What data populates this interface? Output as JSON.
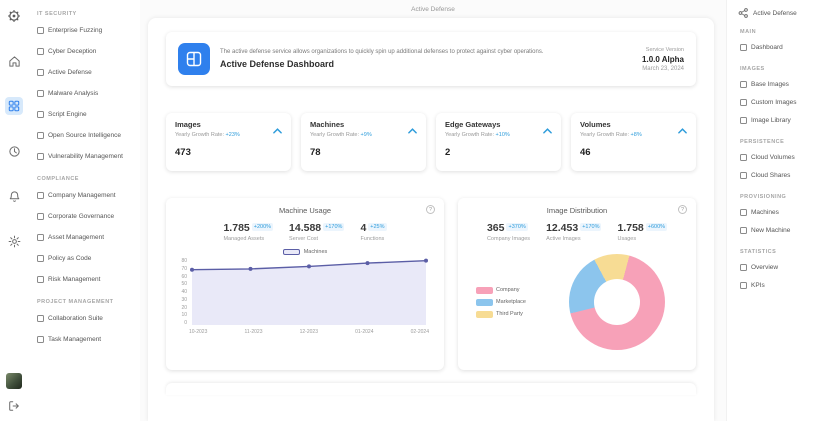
{
  "page_title": "Active Defense",
  "colors": {
    "accent_blue": "#2D9CDB",
    "banner_icon_bg": "#2F80ED",
    "active_rail_bg": "#d7e9fb",
    "line_color": "#5B5EA6",
    "line_fill": "#E9E9F8",
    "donut_pink": "#F7A1B8",
    "donut_blue": "#8CC5ED",
    "donut_yellow": "#F7DC94"
  },
  "icons": {
    "info_glyph": "?"
  },
  "left_rail": [
    "app-logo",
    "home",
    "active-defense",
    "history",
    "notifications",
    "settings",
    "avatar",
    "logout"
  ],
  "left_sidebar": {
    "sections": [
      {
        "header": "IT SECURITY",
        "items": [
          {
            "label": "Enterprise Fuzzing"
          },
          {
            "label": "Cyber Deception"
          },
          {
            "label": "Active Defense"
          },
          {
            "label": "Malware Analysis"
          },
          {
            "label": "Script Engine"
          },
          {
            "label": "Open Source Intelligence"
          },
          {
            "label": "Vulnerability Management"
          }
        ]
      },
      {
        "header": "COMPLIANCE",
        "items": [
          {
            "label": "Company Management"
          },
          {
            "label": "Corporate Governance"
          },
          {
            "label": "Asset Management"
          },
          {
            "label": "Policy as Code"
          },
          {
            "label": "Risk Management"
          }
        ]
      },
      {
        "header": "PROJECT MANAGEMENT",
        "items": [
          {
            "label": "Collaboration Suite"
          },
          {
            "label": "Task Management"
          }
        ]
      }
    ]
  },
  "right_sidebar": {
    "title": "Active Defense",
    "sections": [
      {
        "header": "MAIN",
        "items": [
          {
            "label": "Dashboard"
          }
        ]
      },
      {
        "header": "IMAGES",
        "items": [
          {
            "label": "Base Images"
          },
          {
            "label": "Custom Images"
          },
          {
            "label": "Image Library"
          }
        ]
      },
      {
        "header": "PERSISTENCE",
        "items": [
          {
            "label": "Cloud Volumes"
          },
          {
            "label": "Cloud Shares"
          }
        ]
      },
      {
        "header": "PROVISIONING",
        "items": [
          {
            "label": "Machines"
          },
          {
            "label": "New Machine"
          }
        ]
      },
      {
        "header": "STATISTICS",
        "items": [
          {
            "label": "Overview"
          },
          {
            "label": "KPIs"
          }
        ]
      }
    ]
  },
  "banner": {
    "description": "The active defense service allows organizations to quickly spin up additional defenses to protect against cyber operations.",
    "title": "Active Defense Dashboard",
    "version_label": "Service Version",
    "version": "1.0.0 Alpha",
    "date": "March 23, 2024"
  },
  "stat_cards": [
    {
      "title": "Images",
      "growth_label": "Yearly Growth Rate:",
      "growth": "+23%",
      "value": "473"
    },
    {
      "title": "Machines",
      "growth_label": "Yearly Growth Rate:",
      "growth": "+9%",
      "value": "78"
    },
    {
      "title": "Edge Gateways",
      "growth_label": "Yearly Growth Rate:",
      "growth": "+10%",
      "value": "2"
    },
    {
      "title": "Volumes",
      "growth_label": "Yearly Growth Rate:",
      "growth": "+8%",
      "value": "46"
    }
  ],
  "machine_usage": {
    "title": "Machine Usage",
    "stats": [
      {
        "value": "1.785",
        "badge": "+200%",
        "label": "Managed Assets"
      },
      {
        "value": "14.588",
        "badge": "+170%",
        "label": "Server Cost"
      },
      {
        "value": "4",
        "badge": "+25%",
        "label": "Functions"
      }
    ],
    "legend": "Machines"
  },
  "image_distribution": {
    "title": "Image Distribution",
    "stats": [
      {
        "value": "365",
        "badge": "+370%",
        "label": "Company Images"
      },
      {
        "value": "12.453",
        "badge": "+170%",
        "label": "Active Images"
      },
      {
        "value": "1.758",
        "badge": "+600%",
        "label": "Usages"
      }
    ]
  },
  "chart_data": [
    {
      "type": "area",
      "title": "Machine Usage",
      "series": [
        {
          "name": "Machines",
          "values": [
            67,
            68,
            71,
            75,
            78
          ]
        }
      ],
      "x": [
        "10-2023",
        "11-2023",
        "12-2023",
        "01-2024",
        "02-2024"
      ],
      "ylim": [
        0,
        80
      ],
      "yticks": [
        80,
        70,
        60,
        50,
        40,
        30,
        20,
        10,
        0
      ],
      "line_color": "#5B5EA6",
      "fill_color": "#E9E9F8",
      "legend_position": "top"
    },
    {
      "type": "donut",
      "title": "Image Distribution",
      "slices": [
        {
          "label": "Company",
          "value": 67,
          "color": "#F7A1B8"
        },
        {
          "label": "Marketplace",
          "value": 21,
          "color": "#8CC5ED"
        },
        {
          "label": "Third Party",
          "value": 12,
          "color": "#F7DC94"
        }
      ],
      "start_angle": 15,
      "legend_position": "left"
    }
  ]
}
